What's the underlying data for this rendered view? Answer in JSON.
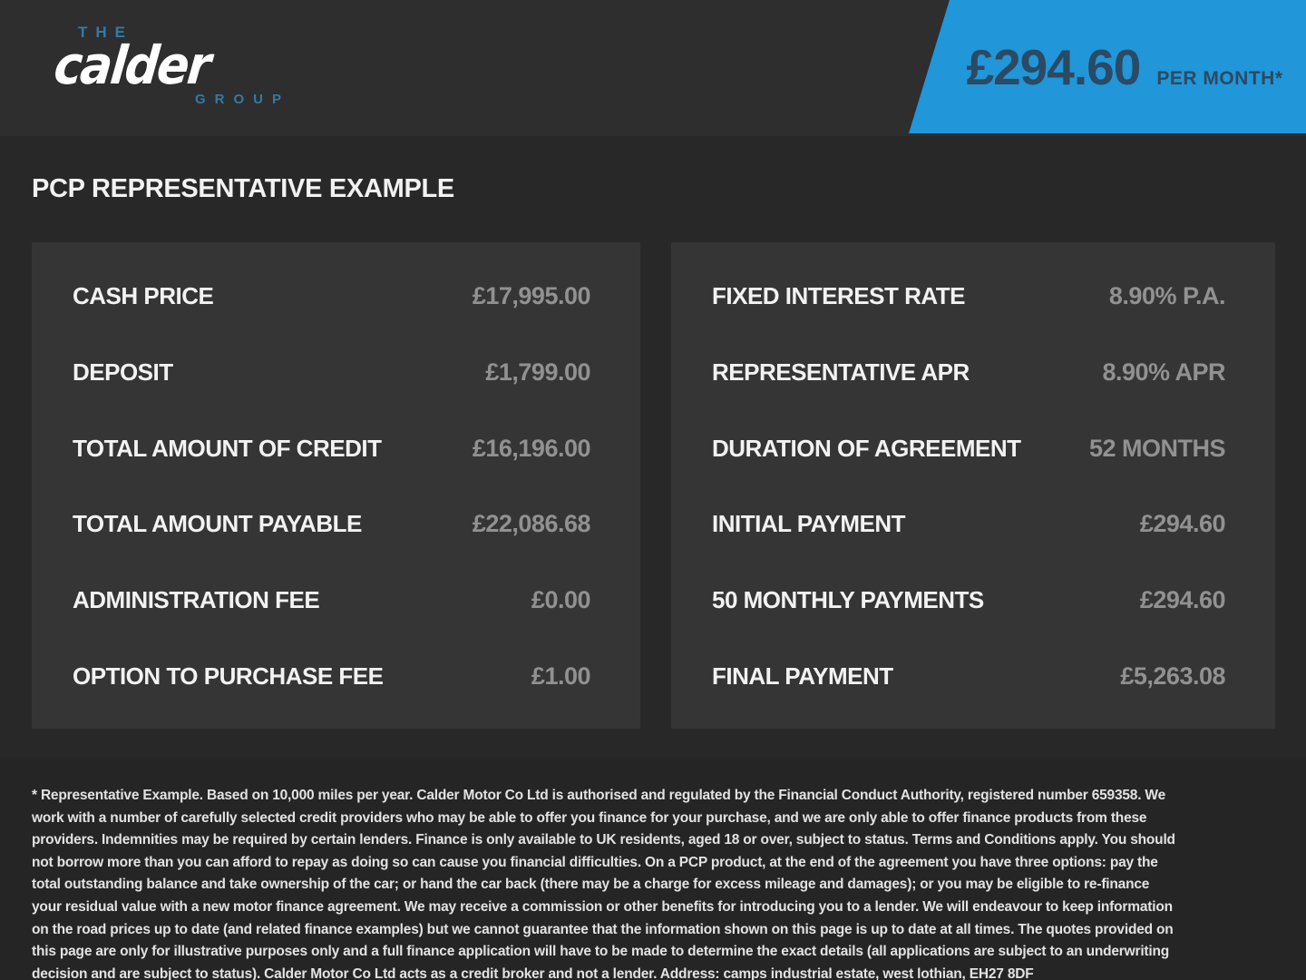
{
  "colors": {
    "header_bg": "#2e2e2e",
    "main_bg": "#282828",
    "panel_bg": "#353535",
    "footer_bg": "#252525",
    "banner_blue": "#2196d8",
    "banner_text": "#2b4a63",
    "logo_blue": "#3579a4",
    "label_white": "#f2f2f2",
    "value_gray": "#919191"
  },
  "header": {
    "logo": {
      "line1": "THE",
      "line2": "calder",
      "line3": "GROUP"
    },
    "banner": {
      "amount": "£294.60",
      "period": "PER MONTH*"
    }
  },
  "main": {
    "title": "PCP REPRESENTATIVE EXAMPLE",
    "left_panel": {
      "rows": [
        {
          "label": "CASH PRICE",
          "value": "£17,995.00"
        },
        {
          "label": "DEPOSIT",
          "value": "£1,799.00"
        },
        {
          "label": "TOTAL AMOUNT OF CREDIT",
          "value": "£16,196.00"
        },
        {
          "label": "TOTAL AMOUNT PAYABLE",
          "value": "£22,086.68"
        },
        {
          "label": "ADMINISTRATION FEE",
          "value": "£0.00"
        },
        {
          "label": "OPTION TO PURCHASE FEE",
          "value": "£1.00"
        }
      ]
    },
    "right_panel": {
      "rows": [
        {
          "label": "FIXED INTEREST RATE",
          "value": "8.90% P.A."
        },
        {
          "label": "REPRESENTATIVE APR",
          "value": "8.90% APR"
        },
        {
          "label": "DURATION OF AGREEMENT",
          "value": "52 MONTHS"
        },
        {
          "label": "INITIAL PAYMENT",
          "value": "£294.60"
        },
        {
          "label": "50 MONTHLY PAYMENTS",
          "value": "£294.60"
        },
        {
          "label": "FINAL PAYMENT",
          "value": "£5,263.08"
        }
      ]
    }
  },
  "footer": {
    "disclaimer": "* Representative Example. Based on 10,000 miles per year. Calder Motor Co Ltd is authorised and regulated by the Financial Conduct Authority, registered number 659358. We work with a number of carefully selected credit providers who may be able to offer you finance for your purchase, and we are only able to offer finance products from these providers. Indemnities may be required by certain lenders. Finance is only available to UK residents, aged 18 or over, subject to status. Terms and Conditions apply. You should not borrow more than you can afford to repay as doing so can cause you financial difficulties. On a PCP product, at the end of the agreement you have three options: pay the total outstanding balance and take ownership of the car; or hand the car back (there may be a charge for excess mileage and damages); or you may be eligible to re-finance your residual value with a new motor finance agreement. We may receive a commission or other benefits for introducing you to a lender. We will endeavour to keep information on the road prices up to date (and related finance examples) but we cannot guarantee that the information shown on this page is up to date at all times. The quotes provided on this page are only for illustrative purposes only and a full finance application will have to be made to determine the exact details (all applications are subject to an underwriting decision and are subject to status). Calder Motor Co Ltd acts as a credit broker and not a lender. Address: camps industrial estate, west lothian, EH27 8DF"
  }
}
